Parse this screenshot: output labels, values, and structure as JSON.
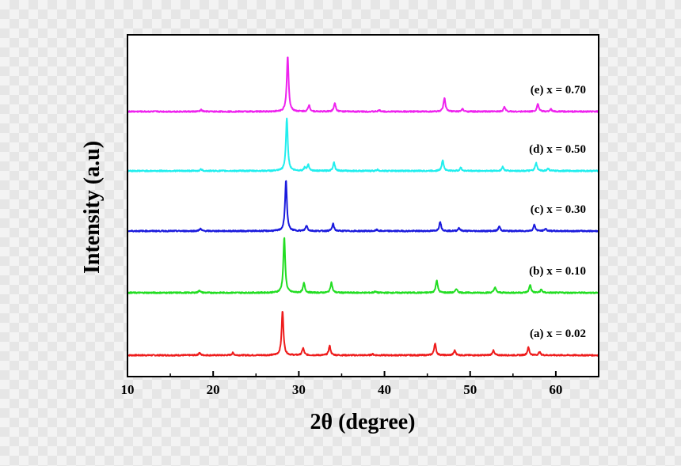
{
  "chart_data": {
    "type": "line",
    "xlabel": "2θ (degree)",
    "ylabel": "Intensity (a.u)",
    "xlim": [
      10,
      65
    ],
    "x_ticks": [
      10,
      20,
      30,
      40,
      50,
      60
    ],
    "y_ticks_shown": false,
    "grid": false,
    "legend": "inline labels above each curve, right side",
    "series": [
      {
        "name": "(a) x = 0.02",
        "color": "#ee1c1c",
        "baseline": 0,
        "peaks": [
          {
            "x": 18.4,
            "h": 3
          },
          {
            "x": 22.3,
            "h": 3
          },
          {
            "x": 28.1,
            "h": 56
          },
          {
            "x": 30.5,
            "h": 9
          },
          {
            "x": 33.6,
            "h": 12
          },
          {
            "x": 38.6,
            "h": 1.5
          },
          {
            "x": 45.9,
            "h": 15
          },
          {
            "x": 48.2,
            "h": 6
          },
          {
            "x": 52.7,
            "h": 6
          },
          {
            "x": 56.8,
            "h": 10
          },
          {
            "x": 58.1,
            "h": 4
          }
        ]
      },
      {
        "name": "(b) x = 0.10",
        "color": "#22dd22",
        "baseline": 79,
        "peaks": [
          {
            "x": 18.4,
            "h": 3
          },
          {
            "x": 28.3,
            "h": 70
          },
          {
            "x": 30.6,
            "h": 12
          },
          {
            "x": 33.8,
            "h": 13
          },
          {
            "x": 38.9,
            "h": 1.5
          },
          {
            "x": 46.1,
            "h": 16
          },
          {
            "x": 48.4,
            "h": 5
          },
          {
            "x": 52.9,
            "h": 7
          },
          {
            "x": 57.0,
            "h": 10
          },
          {
            "x": 58.3,
            "h": 4
          }
        ]
      },
      {
        "name": "(c) x = 0.30",
        "color": "#1a1add",
        "baseline": 157,
        "peaks": [
          {
            "x": 18.5,
            "h": 3
          },
          {
            "x": 28.5,
            "h": 64
          },
          {
            "x": 30.9,
            "h": 7
          },
          {
            "x": 34.0,
            "h": 9
          },
          {
            "x": 39.1,
            "h": 1.5
          },
          {
            "x": 46.5,
            "h": 12
          },
          {
            "x": 48.7,
            "h": 4
          },
          {
            "x": 53.4,
            "h": 6
          },
          {
            "x": 57.5,
            "h": 8
          },
          {
            "x": 58.8,
            "h": 3
          }
        ]
      },
      {
        "name": "(d) x = 0.50",
        "color": "#22eeee",
        "baseline": 233,
        "peaks": [
          {
            "x": 18.6,
            "h": 2
          },
          {
            "x": 28.6,
            "h": 67
          },
          {
            "x": 30.7,
            "h": 4
          },
          {
            "x": 31.1,
            "h": 8
          },
          {
            "x": 34.1,
            "h": 11
          },
          {
            "x": 39.2,
            "h": 1.5
          },
          {
            "x": 46.8,
            "h": 14
          },
          {
            "x": 48.9,
            "h": 4
          },
          {
            "x": 53.8,
            "h": 5
          },
          {
            "x": 57.7,
            "h": 10
          },
          {
            "x": 59.1,
            "h": 3
          }
        ]
      },
      {
        "name": "(e) x = 0.70",
        "color": "#ee22ee",
        "baseline": 308,
        "peaks": [
          {
            "x": 18.6,
            "h": 2
          },
          {
            "x": 28.7,
            "h": 70
          },
          {
            "x": 31.2,
            "h": 8
          },
          {
            "x": 34.2,
            "h": 11
          },
          {
            "x": 39.4,
            "h": 1.5
          },
          {
            "x": 47.0,
            "h": 17
          },
          {
            "x": 49.1,
            "h": 3
          },
          {
            "x": 54.0,
            "h": 6
          },
          {
            "x": 57.9,
            "h": 10
          },
          {
            "x": 59.4,
            "h": 3
          }
        ]
      }
    ]
  }
}
